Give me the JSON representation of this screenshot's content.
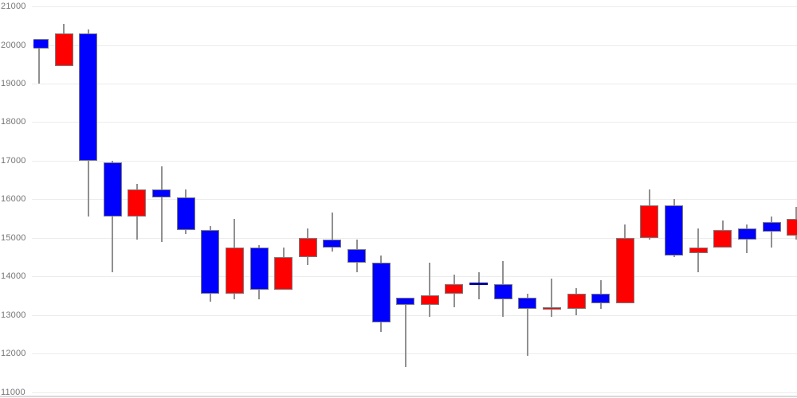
{
  "chart_data": {
    "type": "candlestick",
    "title": "",
    "xlabel": "",
    "ylabel": "",
    "grid": "horizontal-only",
    "y_axis": {
      "min": 11000,
      "max": 21000,
      "tick_interval": 1000,
      "tick_labels": [
        "21000",
        "20000",
        "19000",
        "18000",
        "17000",
        "16000",
        "15000",
        "14000",
        "13000",
        "12000",
        "11000"
      ]
    },
    "colors": {
      "up": "#ff0000",
      "down": "#0000ff",
      "doji": "#000099",
      "wick": "#909090",
      "body_border": "#7b7b7b",
      "grid": "#ececec",
      "axis_text": "#757575",
      "baseline": "#d9d9d9",
      "background": "#ffffff"
    },
    "candles": [
      {
        "open": 20150,
        "high": 20150,
        "low": 19000,
        "close": 19900,
        "direction": "down"
      },
      {
        "open": 19450,
        "high": 20550,
        "low": 19450,
        "close": 20300,
        "direction": "up"
      },
      {
        "open": 20300,
        "high": 20400,
        "low": 15550,
        "close": 17000,
        "direction": "down"
      },
      {
        "open": 16950,
        "high": 17000,
        "low": 14100,
        "close": 15550,
        "direction": "down"
      },
      {
        "open": 15550,
        "high": 16400,
        "low": 14950,
        "close": 16250,
        "direction": "up"
      },
      {
        "open": 16250,
        "high": 16850,
        "low": 14900,
        "close": 16050,
        "direction": "down"
      },
      {
        "open": 16050,
        "high": 16250,
        "low": 15100,
        "close": 15200,
        "direction": "down"
      },
      {
        "open": 15200,
        "high": 15300,
        "low": 13350,
        "close": 13550,
        "direction": "down"
      },
      {
        "open": 13550,
        "high": 15500,
        "low": 13400,
        "close": 14750,
        "direction": "up"
      },
      {
        "open": 14750,
        "high": 14800,
        "low": 13400,
        "close": 13650,
        "direction": "down"
      },
      {
        "open": 13650,
        "high": 14750,
        "low": 13650,
        "close": 14500,
        "direction": "up"
      },
      {
        "open": 14500,
        "high": 15250,
        "low": 14300,
        "close": 15000,
        "direction": "up"
      },
      {
        "open": 14950,
        "high": 15650,
        "low": 14650,
        "close": 14750,
        "direction": "down"
      },
      {
        "open": 14700,
        "high": 14950,
        "low": 14100,
        "close": 14350,
        "direction": "down"
      },
      {
        "open": 14350,
        "high": 14550,
        "low": 12550,
        "close": 12800,
        "direction": "down"
      },
      {
        "open": 13450,
        "high": 13450,
        "low": 11650,
        "close": 13250,
        "direction": "down"
      },
      {
        "open": 13250,
        "high": 14350,
        "low": 12950,
        "close": 13500,
        "direction": "up"
      },
      {
        "open": 13550,
        "high": 14050,
        "low": 13200,
        "close": 13800,
        "direction": "up"
      },
      {
        "open": 13800,
        "high": 14100,
        "low": 13400,
        "close": 13800,
        "direction": "doji"
      },
      {
        "open": 13800,
        "high": 14400,
        "low": 12950,
        "close": 13400,
        "direction": "down"
      },
      {
        "open": 13450,
        "high": 13550,
        "low": 11950,
        "close": 13150,
        "direction": "down"
      },
      {
        "open": 13150,
        "high": 13950,
        "low": 12950,
        "close": 13200,
        "direction": "up"
      },
      {
        "open": 13150,
        "high": 13700,
        "low": 13000,
        "close": 13550,
        "direction": "up"
      },
      {
        "open": 13550,
        "high": 13900,
        "low": 13150,
        "close": 13300,
        "direction": "down"
      },
      {
        "open": 13300,
        "high": 15350,
        "low": 13300,
        "close": 15000,
        "direction": "up"
      },
      {
        "open": 15000,
        "high": 16250,
        "low": 14950,
        "close": 15850,
        "direction": "up"
      },
      {
        "open": 15850,
        "high": 16000,
        "low": 14500,
        "close": 14550,
        "direction": "down"
      },
      {
        "open": 14600,
        "high": 15250,
        "low": 14100,
        "close": 14750,
        "direction": "up"
      },
      {
        "open": 14750,
        "high": 15450,
        "low": 14750,
        "close": 15200,
        "direction": "up"
      },
      {
        "open": 15250,
        "high": 15350,
        "low": 14600,
        "close": 14950,
        "direction": "down"
      },
      {
        "open": 15400,
        "high": 15550,
        "low": 14750,
        "close": 15150,
        "direction": "down"
      },
      {
        "open": 15050,
        "high": 15800,
        "low": 14950,
        "close": 15500,
        "direction": "up"
      }
    ]
  }
}
